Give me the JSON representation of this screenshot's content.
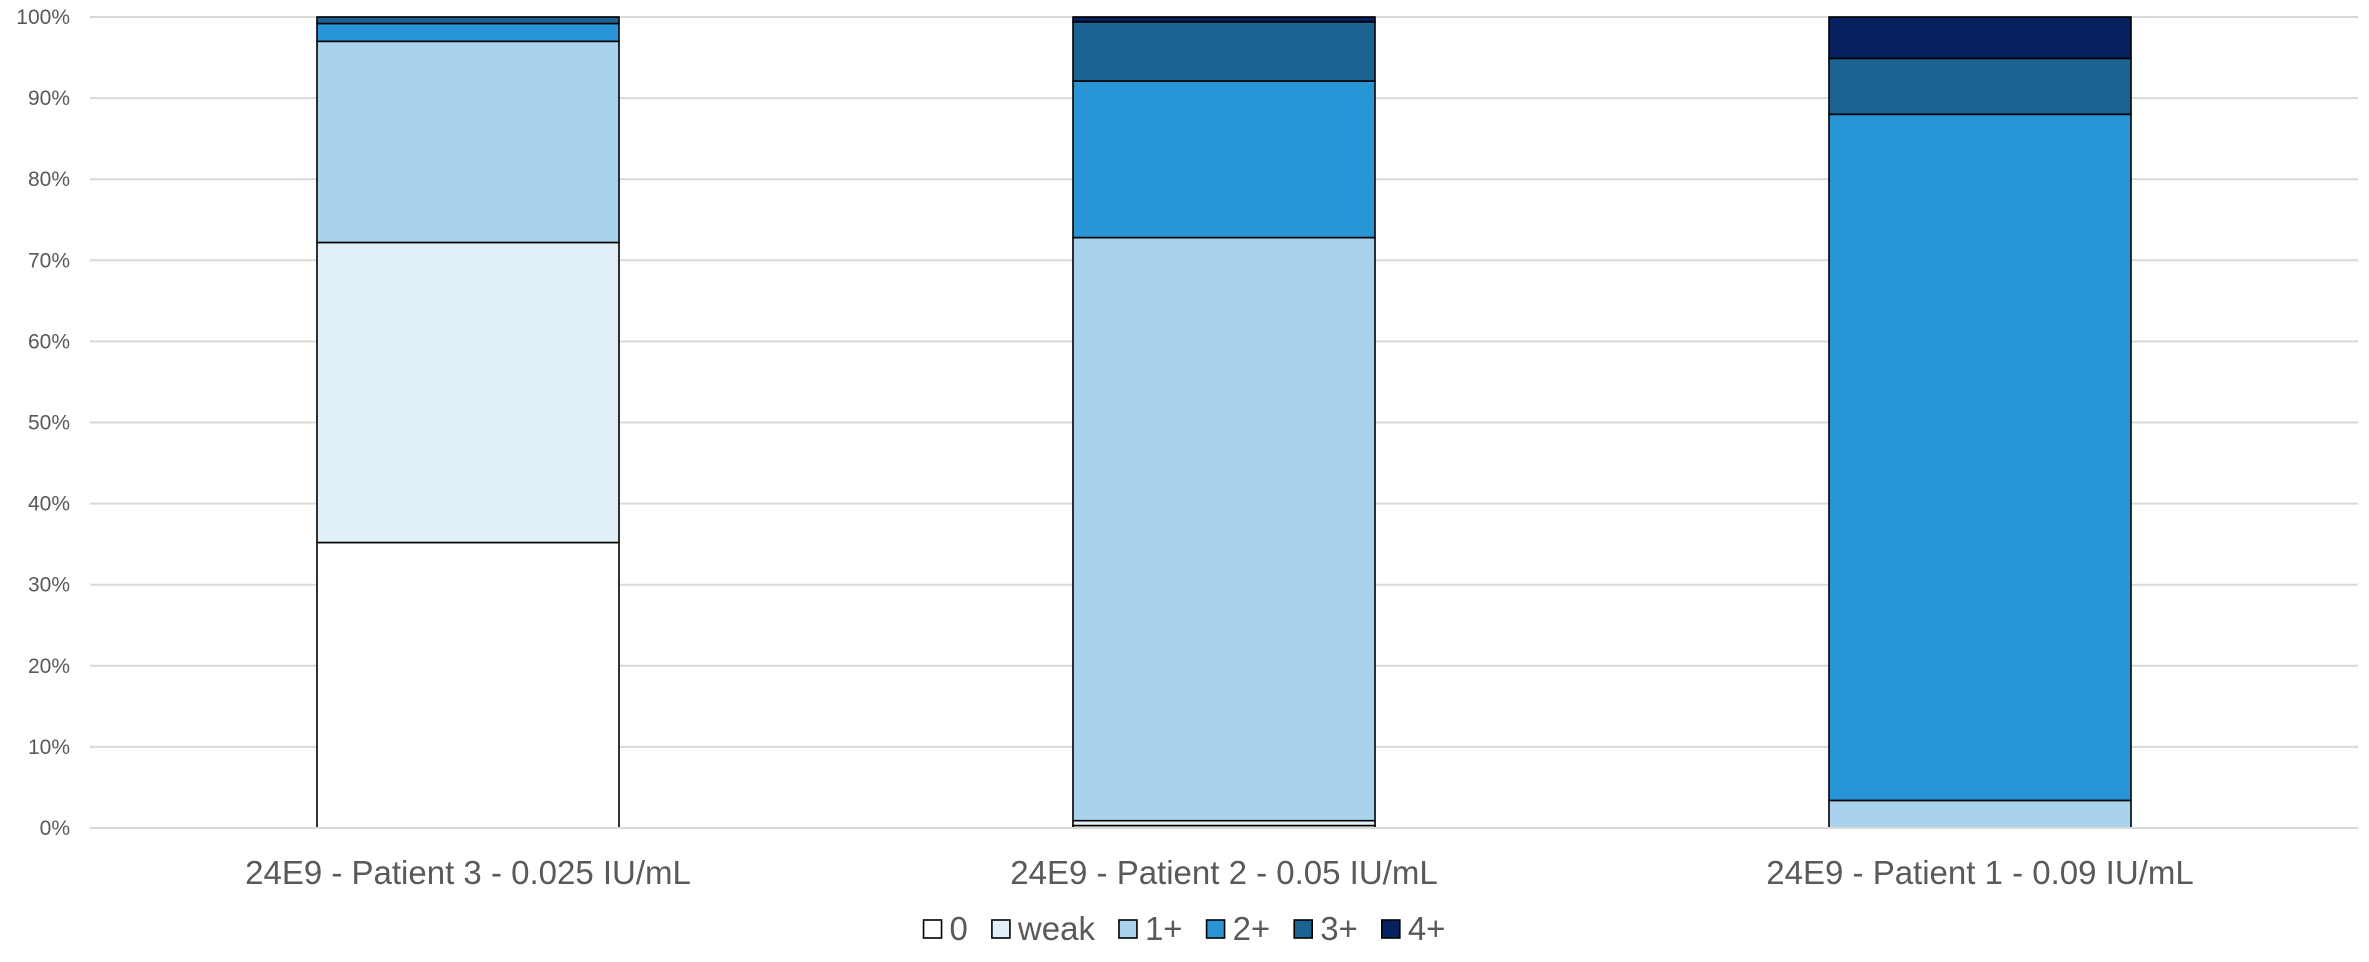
{
  "chart_data": {
    "type": "bar",
    "stacked": true,
    "percent_stacked": true,
    "title": "",
    "xlabel": "",
    "ylabel": "",
    "ylim": [
      0,
      100
    ],
    "yticks": [
      "0%",
      "10%",
      "20%",
      "30%",
      "40%",
      "50%",
      "60%",
      "70%",
      "80%",
      "90%",
      "100%"
    ],
    "grid": true,
    "legend_position": "bottom",
    "categories": [
      "24E9 - Patient 3 - 0.025 IU/mL",
      "24E9 - Patient 2 - 0.05 IU/mL",
      "24E9 - Patient 1 - 0.09 IU/mL"
    ],
    "series": [
      {
        "name": "0",
        "color": "#FFFFFF",
        "values": [
          35.2,
          0.3,
          0.0
        ]
      },
      {
        "name": "weak",
        "color": "#E1EFF9",
        "values": [
          37.0,
          0.6,
          0.0
        ]
      },
      {
        "name": "1+",
        "color": "#A9D3ED",
        "values": [
          24.8,
          71.9,
          3.4
        ]
      },
      {
        "name": "2+",
        "color": "#2896D6",
        "values": [
          2.2,
          19.3,
          84.6
        ]
      },
      {
        "name": "3+",
        "color": "#1B6390",
        "values": [
          0.8,
          7.3,
          6.9
        ]
      },
      {
        "name": "4+",
        "color": "#05225E",
        "values": [
          0.0,
          0.6,
          5.1
        ]
      }
    ]
  }
}
